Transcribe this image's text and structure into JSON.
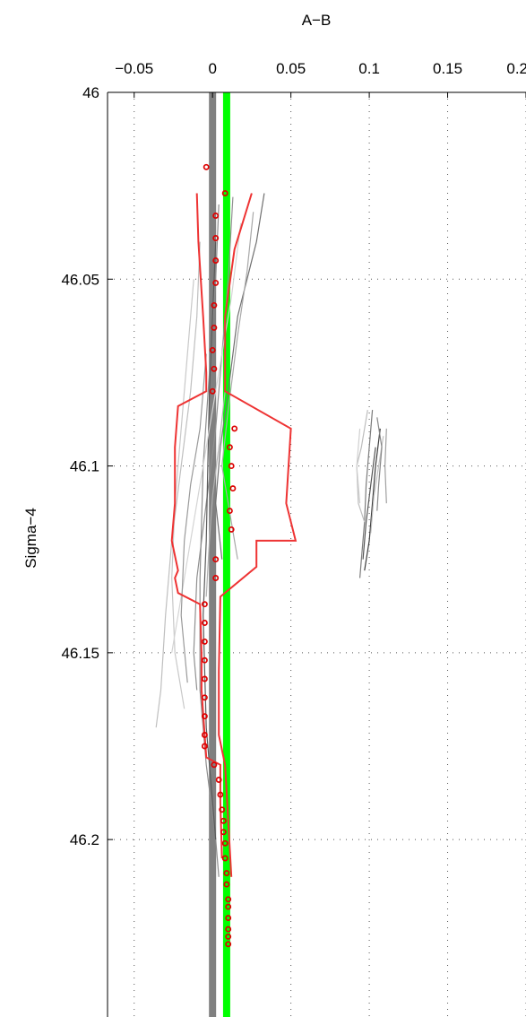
{
  "chart_data": {
    "type": "line",
    "xlabel": "A−B",
    "ylabel": "Sigma−4",
    "xlim": [
      -0.067,
      0.2
    ],
    "ylim": [
      46.2475,
      46.0
    ],
    "y_reversed": true,
    "x_axis_position": "top",
    "grid": true,
    "x_ticks": [
      -0.05,
      0,
      0.05,
      0.1,
      0.15,
      0.2
    ],
    "x_tick_labels": [
      "−0.05",
      "0",
      "0.05",
      "0.1",
      "0.15",
      "0.2"
    ],
    "y_ticks": [
      46.0,
      46.05,
      46.1,
      46.15,
      46.2
    ],
    "y_tick_labels": [
      "46",
      "46.05",
      "46.1",
      "46.15",
      "46.2"
    ],
    "vertical_bands": [
      {
        "x": 0.0,
        "color": "#808080"
      },
      {
        "x": 0.009,
        "color": "#00ff00"
      }
    ],
    "series": [
      {
        "color": "#909090",
        "points": [
          [
            0.013,
            46.028
          ],
          [
            0.01,
            46.05
          ],
          [
            0.006,
            46.07
          ],
          [
            0.002,
            46.09
          ],
          [
            -0.004,
            46.11
          ],
          [
            -0.01,
            46.13
          ],
          [
            -0.012,
            46.15
          ],
          [
            -0.01,
            46.16
          ]
        ]
      },
      {
        "color": "#bfbfbf",
        "points": [
          [
            -0.008,
            46.04
          ],
          [
            -0.01,
            46.06
          ],
          [
            -0.014,
            46.08
          ],
          [
            -0.02,
            46.1
          ],
          [
            -0.026,
            46.12
          ],
          [
            -0.03,
            46.14
          ],
          [
            -0.033,
            46.16
          ],
          [
            -0.036,
            46.17
          ]
        ]
      },
      {
        "color": "#707070",
        "points": [
          [
            0.033,
            46.027
          ],
          [
            0.028,
            46.04
          ],
          [
            0.022,
            46.05
          ],
          [
            0.016,
            46.06
          ],
          [
            0.01,
            46.08
          ],
          [
            0.005,
            46.095
          ],
          [
            0.002,
            46.11
          ],
          [
            0.006,
            46.125
          ]
        ]
      },
      {
        "color": "#a8a8a8",
        "points": [
          [
            0.026,
            46.032
          ],
          [
            0.022,
            46.048
          ],
          [
            0.016,
            46.065
          ],
          [
            0.01,
            46.085
          ],
          [
            0.006,
            46.1
          ],
          [
            0.012,
            46.115
          ],
          [
            0.016,
            46.125
          ]
        ]
      },
      {
        "color": "#8c8c8c",
        "points": [
          [
            0.004,
            46.03
          ],
          [
            0.002,
            46.05
          ],
          [
            -0.002,
            46.075
          ],
          [
            -0.006,
            46.1
          ],
          [
            -0.008,
            46.13
          ],
          [
            -0.008,
            46.16
          ],
          [
            -0.004,
            46.18
          ],
          [
            0.002,
            46.2
          ],
          [
            0.004,
            46.21
          ]
        ]
      },
      {
        "color": "#c8c8c8",
        "points": [
          [
            -0.012,
            46.05
          ],
          [
            -0.016,
            46.07
          ],
          [
            -0.02,
            46.09
          ],
          [
            -0.024,
            46.11
          ],
          [
            -0.026,
            46.13
          ],
          [
            -0.024,
            46.15
          ],
          [
            -0.018,
            46.165
          ]
        ]
      },
      {
        "color": "#5a5a5a",
        "points": [
          [
            0.002,
            46.04
          ],
          [
            0.0,
            46.06
          ],
          [
            -0.002,
            46.08
          ],
          [
            -0.003,
            46.1
          ],
          [
            -0.004,
            46.12
          ],
          [
            -0.006,
            46.14
          ],
          [
            -0.004,
            46.17
          ],
          [
            0.0,
            46.19
          ],
          [
            0.002,
            46.2
          ]
        ]
      },
      {
        "color": "#d4d4d4",
        "points": [
          [
            0.018,
            46.035
          ],
          [
            0.012,
            46.055
          ],
          [
            0.004,
            46.075
          ],
          [
            -0.004,
            46.095
          ],
          [
            -0.012,
            46.115
          ],
          [
            -0.02,
            46.135
          ],
          [
            -0.026,
            46.15
          ]
        ]
      },
      {
        "color": "#9a9a9a",
        "points": [
          [
            -0.004,
            46.07
          ],
          [
            -0.008,
            46.09
          ],
          [
            -0.014,
            46.105
          ],
          [
            -0.018,
            46.12
          ],
          [
            -0.02,
            46.14
          ],
          [
            -0.016,
            46.158
          ]
        ]
      },
      {
        "color": "#b0b0b0",
        "points": [
          [
            0.008,
            46.08
          ],
          [
            0.004,
            46.095
          ],
          [
            0.0,
            46.108
          ],
          [
            -0.002,
            46.12
          ],
          [
            -0.004,
            46.135
          ]
        ]
      },
      {
        "color": "#7c7c7c",
        "points": [
          [
            0.102,
            46.085
          ],
          [
            0.1,
            46.095
          ],
          [
            0.098,
            46.105
          ],
          [
            0.097,
            46.115
          ],
          [
            0.095,
            46.125
          ],
          [
            0.094,
            46.13
          ]
        ]
      },
      {
        "color": "#3c3c3c",
        "points": [
          [
            0.107,
            46.09
          ],
          [
            0.104,
            46.1
          ],
          [
            0.102,
            46.11
          ],
          [
            0.1,
            46.12
          ],
          [
            0.097,
            46.128
          ]
        ]
      },
      {
        "color": "#bdbdbd",
        "points": [
          [
            0.099,
            46.085
          ],
          [
            0.095,
            46.095
          ],
          [
            0.092,
            46.1
          ],
          [
            0.093,
            46.11
          ],
          [
            0.097,
            46.115
          ]
        ]
      },
      {
        "color": "#a0a0a0",
        "points": [
          [
            0.111,
            46.09
          ],
          [
            0.11,
            46.1
          ],
          [
            0.111,
            46.11
          ]
        ]
      },
      {
        "color": "#d0d0d0",
        "points": [
          [
            0.094,
            46.09
          ],
          [
            0.092,
            46.1
          ],
          [
            0.094,
            46.11
          ]
        ]
      },
      {
        "color": "#555555",
        "points": [
          [
            0.104,
            46.095
          ],
          [
            0.101,
            46.105
          ],
          [
            0.098,
            46.115
          ],
          [
            0.096,
            46.125
          ]
        ]
      },
      {
        "color": "#c0c0c0",
        "points": [
          [
            0.109,
            46.092
          ],
          [
            0.106,
            46.1
          ],
          [
            0.103,
            46.108
          ],
          [
            0.101,
            46.118
          ]
        ]
      },
      {
        "color": "#888888",
        "points": [
          [
            0.105,
            46.087
          ],
          [
            0.108,
            46.095
          ],
          [
            0.106,
            46.105
          ],
          [
            0.105,
            46.112
          ]
        ]
      }
    ],
    "envelope_lines": [
      {
        "color": "#ee3333",
        "points": [
          [
            -0.01,
            46.027
          ],
          [
            -0.009,
            46.04
          ],
          [
            -0.006,
            46.06
          ],
          [
            -0.004,
            46.075
          ],
          [
            -0.004,
            46.08
          ],
          [
            -0.022,
            46.084
          ],
          [
            -0.024,
            46.095
          ],
          [
            -0.024,
            46.11
          ],
          [
            -0.026,
            46.12
          ],
          [
            -0.022,
            46.128
          ],
          [
            -0.024,
            46.13
          ],
          [
            -0.022,
            46.134
          ],
          [
            -0.008,
            46.137
          ],
          [
            -0.007,
            46.15
          ],
          [
            -0.007,
            46.16
          ],
          [
            -0.005,
            46.172
          ],
          [
            -0.004,
            46.178
          ],
          [
            0.005,
            46.18
          ],
          [
            0.005,
            46.19
          ],
          [
            0.006,
            46.205
          ]
        ]
      },
      {
        "color": "#ee3333",
        "points": [
          [
            0.025,
            46.027
          ],
          [
            0.014,
            46.042
          ],
          [
            0.008,
            46.06
          ],
          [
            0.008,
            46.08
          ],
          [
            0.05,
            46.09
          ],
          [
            0.047,
            46.11
          ],
          [
            0.053,
            46.12
          ],
          [
            0.028,
            46.12
          ],
          [
            0.028,
            46.127
          ],
          [
            0.005,
            46.135
          ],
          [
            0.004,
            46.155
          ],
          [
            0.004,
            46.172
          ],
          [
            0.008,
            46.18
          ],
          [
            0.01,
            46.195
          ],
          [
            0.012,
            46.21
          ]
        ]
      }
    ],
    "markers": {
      "color": "#dd0000",
      "points": [
        [
          -0.004,
          46.02
        ],
        [
          0.008,
          46.027
        ],
        [
          0.002,
          46.033
        ],
        [
          0.002,
          46.039
        ],
        [
          0.002,
          46.045
        ],
        [
          0.002,
          46.051
        ],
        [
          0.001,
          46.057
        ],
        [
          0.001,
          46.063
        ],
        [
          0.0,
          46.069
        ],
        [
          0.001,
          46.074
        ],
        [
          0.0,
          46.08
        ],
        [
          0.014,
          46.09
        ],
        [
          0.011,
          46.095
        ],
        [
          0.012,
          46.1
        ],
        [
          0.013,
          46.106
        ],
        [
          0.011,
          46.112
        ],
        [
          0.012,
          46.117
        ],
        [
          0.002,
          46.125
        ],
        [
          0.002,
          46.13
        ],
        [
          -0.005,
          46.137
        ],
        [
          -0.005,
          46.142
        ],
        [
          -0.005,
          46.147
        ],
        [
          -0.005,
          46.152
        ],
        [
          -0.005,
          46.157
        ],
        [
          -0.005,
          46.162
        ],
        [
          -0.005,
          46.167
        ],
        [
          -0.005,
          46.172
        ],
        [
          -0.005,
          46.175
        ],
        [
          0.001,
          46.18
        ],
        [
          0.004,
          46.184
        ],
        [
          0.005,
          46.188
        ],
        [
          0.006,
          46.192
        ],
        [
          0.007,
          46.195
        ],
        [
          0.007,
          46.198
        ],
        [
          0.008,
          46.201
        ],
        [
          0.008,
          46.205
        ],
        [
          0.009,
          46.209
        ],
        [
          0.009,
          46.212
        ],
        [
          0.01,
          46.216
        ],
        [
          0.01,
          46.218
        ],
        [
          0.01,
          46.221
        ],
        [
          0.01,
          46.224
        ],
        [
          0.01,
          46.226
        ],
        [
          0.01,
          46.228
        ]
      ]
    }
  }
}
